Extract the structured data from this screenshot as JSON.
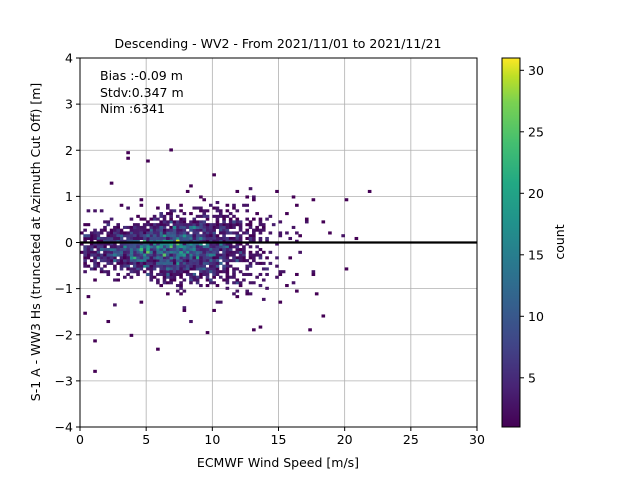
{
  "chart_data": {
    "type": "heatmap",
    "title": "Descending - WV2 - From 2021/11/01 to 2021/11/21",
    "xlabel": "ECMWF Wind Speed [m/s]",
    "ylabel": "S-1 A - WW3 Hs (truncated at Azimuth Cut Off) [m]",
    "xlim": [
      0,
      30
    ],
    "ylim": [
      -4,
      4
    ],
    "xticks": [
      "0",
      "5",
      "10",
      "15",
      "20",
      "25",
      "30"
    ],
    "yticks": [
      "4",
      "3",
      "2",
      "1",
      "0",
      "−1",
      "−2",
      "−3",
      "−4"
    ],
    "grid": true,
    "stats": [
      "Bias :-0.09 m",
      "Stdv:0.347 m",
      "Nim :6341"
    ],
    "zero_line": 0,
    "colorbar": {
      "label": "count",
      "range": [
        1,
        31
      ],
      "ticks": [
        "5",
        "10",
        "15",
        "20",
        "25",
        "30"
      ],
      "colormap": "viridis"
    },
    "density": {
      "bin_width_x": 0.25,
      "bin_height_y": 0.06,
      "center_x": 7.0,
      "center_y": -0.12,
      "spread_x": 3.2,
      "spread_y": 0.35,
      "peak_count": 30,
      "total_points": 6341
    },
    "outliers": [
      [
        1.2,
        -2.82
      ],
      [
        1.2,
        -2.15
      ],
      [
        3.7,
        1.92
      ],
      [
        3.6,
        1.8
      ],
      [
        5.1,
        1.75
      ],
      [
        6.9,
        2.03
      ],
      [
        10.0,
        1.48
      ],
      [
        2.3,
        1.27
      ],
      [
        3.9,
        -2.0
      ],
      [
        5.8,
        -2.29
      ],
      [
        9.6,
        -1.93
      ],
      [
        13.6,
        -1.85
      ],
      [
        17.3,
        -1.89
      ],
      [
        18.3,
        -1.6
      ],
      [
        21.9,
        1.1
      ],
      [
        20.0,
        0.9
      ],
      [
        20.8,
        0.1
      ],
      [
        20.0,
        -0.6
      ],
      [
        18.4,
        0.45
      ],
      [
        18.9,
        0.2
      ],
      [
        17.7,
        0.95
      ],
      [
        0.4,
        -1.55
      ],
      [
        0.5,
        -1.2
      ],
      [
        1.0,
        -0.8
      ],
      [
        2.0,
        -1.7
      ],
      [
        14.8,
        1.1
      ],
      [
        16.0,
        1.0
      ],
      [
        15.2,
        -1.3
      ],
      [
        11.9,
        -1.2
      ],
      [
        8.3,
        1.2
      ],
      [
        9.0,
        1.0
      ],
      [
        7.8,
        -1.5
      ],
      [
        4.5,
        -1.3
      ],
      [
        3.1,
        0.8
      ],
      [
        12.5,
        1.0
      ],
      [
        17.9,
        -1.1
      ],
      [
        13.0,
        -1.9
      ],
      [
        15.5,
        0.6
      ],
      [
        17.0,
        0.5
      ],
      [
        16.3,
        -0.7
      ]
    ]
  }
}
